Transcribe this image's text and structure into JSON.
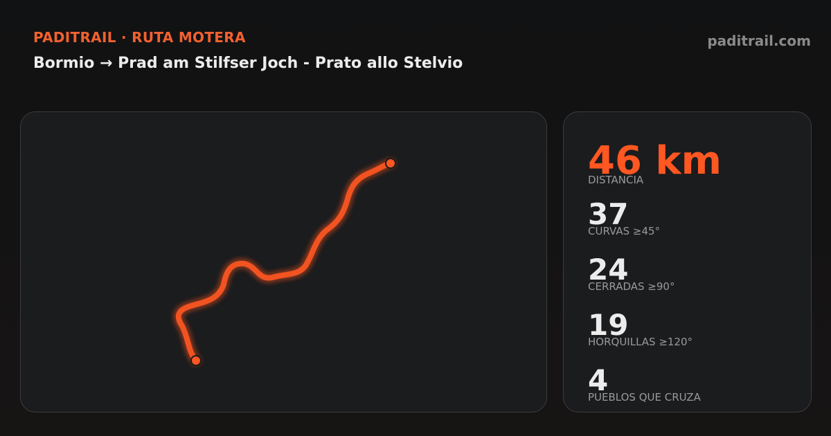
{
  "header": {
    "brand": "PADITRAIL · RUTA MOTERA",
    "route": "Bormio → Prad am Stilfser Joch - Prato allo Stelvio",
    "site": "paditrail.com"
  },
  "stats": [
    {
      "value": "46 km",
      "label": "DISTANCIA"
    },
    {
      "value": "37",
      "label": "CURVAS ≥45°"
    },
    {
      "value": "24",
      "label": "CERRADAS ≥90°"
    },
    {
      "value": "19",
      "label": "HORQUILLAS ≥120°"
    },
    {
      "value": "4",
      "label": "PUEBLOS QUE CRUZA"
    }
  ]
}
